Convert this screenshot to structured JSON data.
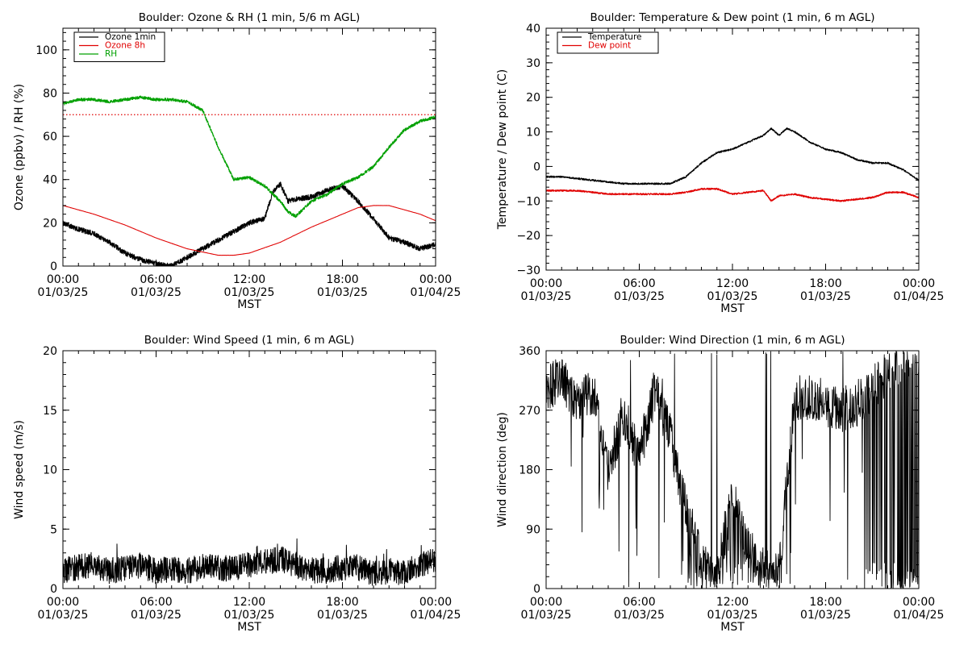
{
  "chart_data": [
    {
      "type": "line",
      "title": "Boulder: Ozone & RH (1 min, 5/6 m AGL)",
      "xlabel": "MST",
      "ylabel": "Ozone (ppbv) / RH (%)",
      "xlim": [
        0,
        24
      ],
      "ylim": [
        0,
        110
      ],
      "xticks": [
        {
          "time": "00:00",
          "date": "01/03/25"
        },
        {
          "time": "06:00",
          "date": "01/03/25"
        },
        {
          "time": "12:00",
          "date": "01/03/25"
        },
        {
          "time": "18:00",
          "date": "01/03/25"
        },
        {
          "time": "00:00",
          "date": "01/04/25"
        }
      ],
      "yticks": [
        "0",
        "20",
        "40",
        "60",
        "80",
        "100"
      ],
      "legend_position": "top-left",
      "reference_lines": [
        {
          "y": 70,
          "color": "#e00000",
          "style": "dotted"
        }
      ],
      "series": [
        {
          "name": "Ozone 1min",
          "color": "#000000",
          "x": [
            0,
            1,
            2,
            3,
            4,
            5,
            6,
            7,
            8,
            9,
            10,
            11,
            12,
            13,
            13.5,
            14,
            14.5,
            15,
            16,
            17,
            18,
            19,
            20,
            21,
            22,
            23,
            24
          ],
          "y": [
            20,
            17,
            15,
            11,
            6,
            3,
            1,
            0,
            4,
            8,
            12,
            16,
            20,
            22,
            34,
            38,
            30,
            31,
            32,
            35,
            37,
            30,
            22,
            13,
            11,
            8,
            10
          ]
        },
        {
          "name": "Ozone 8h",
          "color": "#e00000",
          "x": [
            0,
            2,
            4,
            6,
            8,
            10,
            11,
            12,
            14,
            16,
            18,
            19,
            20,
            21,
            22,
            23,
            24
          ],
          "y": [
            28,
            24,
            19,
            13,
            8,
            5,
            5,
            6,
            11,
            18,
            24,
            27,
            28,
            28,
            26,
            24,
            21
          ]
        },
        {
          "name": "RH",
          "color": "#00a000",
          "x": [
            0,
            1,
            2,
            3,
            4,
            5,
            6,
            7,
            8,
            9,
            10,
            11,
            12,
            13,
            14,
            14.5,
            15,
            16,
            17,
            18,
            19,
            20,
            21,
            22,
            23,
            24
          ],
          "y": [
            75,
            77,
            77,
            76,
            77,
            78,
            77,
            77,
            76,
            72,
            55,
            40,
            41,
            37,
            30,
            25,
            23,
            30,
            33,
            38,
            41,
            46,
            55,
            63,
            67,
            69
          ]
        }
      ]
    },
    {
      "type": "line",
      "title": "Boulder: Temperature & Dew point (1 min, 6 m AGL)",
      "xlabel": "MST",
      "ylabel": "Temperature / Dew point (C)",
      "xlim": [
        0,
        24
      ],
      "ylim": [
        -30,
        40
      ],
      "xticks": [
        {
          "time": "00:00",
          "date": "01/03/25"
        },
        {
          "time": "06:00",
          "date": "01/03/25"
        },
        {
          "time": "12:00",
          "date": "01/03/25"
        },
        {
          "time": "18:00",
          "date": "01/03/25"
        },
        {
          "time": "00:00",
          "date": "01/04/25"
        }
      ],
      "yticks": [
        "−30",
        "−20",
        "−10",
        "0",
        "10",
        "20",
        "30",
        "40"
      ],
      "legend_position": "top-left",
      "series": [
        {
          "name": "Temperature",
          "color": "#000000",
          "x": [
            0,
            1,
            2,
            3,
            4,
            5,
            6,
            7,
            8,
            9,
            10,
            11,
            12,
            13,
            14,
            14.5,
            15,
            15.5,
            16,
            17,
            18,
            19,
            20,
            21,
            22,
            23,
            24
          ],
          "y": [
            -3,
            -3,
            -3.5,
            -4,
            -4.5,
            -5,
            -5,
            -5,
            -5,
            -3,
            1,
            4,
            5,
            7,
            9,
            11,
            9,
            11,
            10,
            7,
            5,
            4,
            2,
            1,
            1,
            -1,
            -4
          ]
        },
        {
          "name": "Dew point",
          "color": "#e00000",
          "x": [
            0,
            2,
            4,
            6,
            8,
            9,
            10,
            11,
            12,
            13,
            14,
            14.5,
            15,
            16,
            17,
            18,
            19,
            20,
            21,
            22,
            23,
            24
          ],
          "y": [
            -7,
            -7,
            -8,
            -8,
            -8,
            -7.5,
            -6.5,
            -6.5,
            -8,
            -7.5,
            -7,
            -10,
            -8.5,
            -8,
            -9,
            -9.5,
            -10,
            -9.5,
            -9,
            -7.5,
            -7.5,
            -9
          ]
        }
      ]
    },
    {
      "type": "line",
      "title": "Boulder: Wind Speed (1 min, 6 m AGL)",
      "xlabel": "MST",
      "ylabel": "Wind speed (m/s)",
      "xlim": [
        0,
        24
      ],
      "ylim": [
        0,
        20
      ],
      "xticks": [
        {
          "time": "00:00",
          "date": "01/03/25"
        },
        {
          "time": "06:00",
          "date": "01/03/25"
        },
        {
          "time": "12:00",
          "date": "01/03/25"
        },
        {
          "time": "18:00",
          "date": "01/03/25"
        },
        {
          "time": "00:00",
          "date": "01/04/25"
        }
      ],
      "yticks": [
        "0",
        "5",
        "10",
        "15",
        "20"
      ],
      "series": [
        {
          "color": "#000000",
          "x": [
            0,
            1,
            2,
            3,
            4,
            5,
            6,
            7,
            8,
            9,
            10,
            11,
            12,
            13,
            14,
            15,
            16,
            17,
            18,
            19,
            20,
            21,
            22,
            23,
            24
          ],
          "y": [
            1.5,
            1.8,
            2.0,
            1.5,
            1.7,
            2.0,
            1.5,
            1.6,
            1.5,
            1.8,
            1.8,
            1.6,
            2.0,
            2.2,
            2.5,
            2.0,
            1.5,
            1.5,
            1.8,
            1.8,
            1.3,
            1.5,
            1.3,
            2.0,
            2.5
          ]
        }
      ]
    },
    {
      "type": "line",
      "title": "Boulder: Wind Direction (1 min, 6 m AGL)",
      "xlabel": "MST",
      "ylabel": "Wind direction (deg)",
      "xlim": [
        0,
        24
      ],
      "ylim": [
        0,
        360
      ],
      "xticks": [
        {
          "time": "00:00",
          "date": "01/03/25"
        },
        {
          "time": "06:00",
          "date": "01/03/25"
        },
        {
          "time": "12:00",
          "date": "01/03/25"
        },
        {
          "time": "18:00",
          "date": "01/03/25"
        },
        {
          "time": "00:00",
          "date": "01/04/25"
        }
      ],
      "yticks": [
        "0",
        "90",
        "180",
        "270",
        "360"
      ],
      "series": [
        {
          "color": "#000000",
          "x": [
            0,
            1,
            2,
            3,
            4,
            5,
            6,
            7,
            8,
            9,
            10,
            11,
            12,
            13,
            14,
            15,
            16,
            17,
            18,
            19,
            20,
            21,
            22,
            23,
            24
          ],
          "y": [
            300,
            320,
            280,
            300,
            180,
            260,
            200,
            300,
            230,
            120,
            40,
            25,
            140,
            60,
            30,
            20,
            290,
            290,
            280,
            270,
            280,
            300,
            330,
            350,
            360
          ]
        }
      ]
    }
  ]
}
